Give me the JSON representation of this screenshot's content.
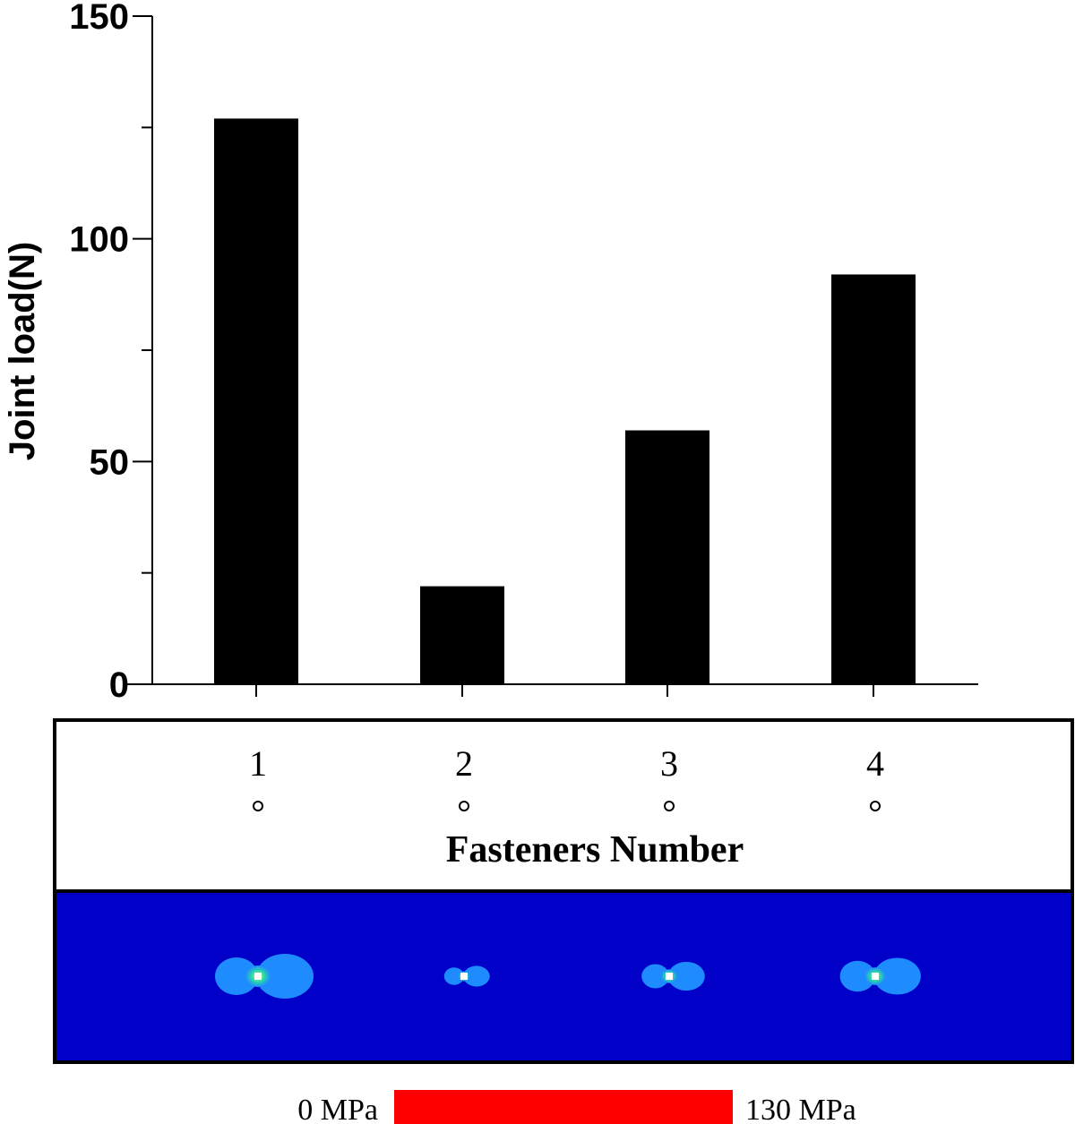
{
  "chart_data": {
    "type": "bar",
    "categories": [
      "1",
      "2",
      "3",
      "4"
    ],
    "values": [
      127,
      22,
      57,
      92
    ],
    "title": "",
    "xlabel": "Fasteners Number",
    "ylabel": "Joint load(N)",
    "ylim": [
      0,
      150
    ],
    "yticks": [
      "0",
      "50",
      "100",
      "150"
    ],
    "grid": false,
    "bar_color": "#000000"
  },
  "stress_map": {
    "background_color": "#0000c8",
    "scale_min_label": "0 MPa",
    "scale_max_label": "130 MPa",
    "scale_color": "#ff0000"
  }
}
